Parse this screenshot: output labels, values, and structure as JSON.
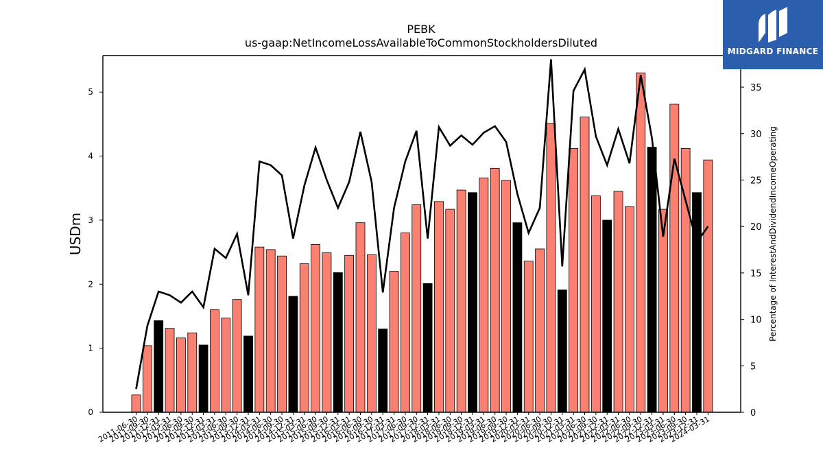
{
  "chart_data": {
    "type": "bar",
    "title": "PEBK",
    "subtitle": "us-gaap:NetIncomeLossAvailableToCommonStockholdersDiluted",
    "ylabel": "USDm",
    "y2label": "Percentage of InterestAndDividendIncomeOperating",
    "ylim": [
      0,
      5.57
    ],
    "y2lim": [
      0,
      38.4
    ],
    "yticks": [
      "0",
      "1",
      "2",
      "3",
      "4",
      "5"
    ],
    "y2ticks": [
      "0",
      "5",
      "10",
      "15",
      "20",
      "25",
      "30",
      "35"
    ],
    "categories": [
      "2011-06-30",
      "2011-09-30",
      "2011-12-31",
      "2012-03-31",
      "2012-06-30",
      "2012-09-30",
      "2012-12-31",
      "2013-03-31",
      "2013-06-30",
      "2013-09-30",
      "2013-12-31",
      "2014-03-31",
      "2014-06-30",
      "2014-09-30",
      "2014-12-31",
      "2015-03-31",
      "2015-06-30",
      "2015-09-30",
      "2015-12-31",
      "2016-03-31",
      "2016-06-30",
      "2016-09-30",
      "2016-12-31",
      "2017-03-31",
      "2017-06-30",
      "2017-09-30",
      "2017-12-31",
      "2018-03-31",
      "2018-06-30",
      "2018-09-30",
      "2018-12-31",
      "2019-03-31",
      "2019-06-30",
      "2019-09-30",
      "2019-12-31",
      "2020-03-31",
      "2020-06-30",
      "2020-09-30",
      "2020-12-31",
      "2021-03-31",
      "2021-06-30",
      "2021-09-30",
      "2021-12-31",
      "2022-03-31",
      "2022-06-30",
      "2022-09-30",
      "2022-12-31",
      "2023-03-31",
      "2023-06-30",
      "2023-09-30",
      "2023-12-31",
      "2024-03-31"
    ],
    "series": [
      {
        "type": "bar",
        "values": [
          0.27,
          1.04,
          1.43,
          1.31,
          1.16,
          1.24,
          1.05,
          1.6,
          1.47,
          1.76,
          1.19,
          2.58,
          2.54,
          2.44,
          1.81,
          2.32,
          2.62,
          2.49,
          2.18,
          2.45,
          2.96,
          2.46,
          1.3,
          2.2,
          2.8,
          3.24,
          2.01,
          3.29,
          3.17,
          3.47,
          3.43,
          3.66,
          3.81,
          3.62,
          2.96,
          2.36,
          2.55,
          4.51,
          1.91,
          4.12,
          4.61,
          3.38,
          3.0,
          3.45,
          3.21,
          5.3,
          4.14,
          3.17,
          4.81,
          4.12,
          3.43,
          3.94
        ],
        "highlight": [
          false,
          false,
          true,
          false,
          false,
          false,
          true,
          false,
          false,
          false,
          true,
          false,
          false,
          false,
          true,
          false,
          false,
          false,
          true,
          false,
          false,
          false,
          true,
          false,
          false,
          false,
          true,
          false,
          false,
          false,
          true,
          false,
          false,
          false,
          true,
          false,
          false,
          false,
          true,
          false,
          false,
          false,
          true,
          false,
          false,
          false,
          true,
          false,
          false,
          false,
          true,
          false
        ],
        "color": "#fa8072",
        "highlight_color": "#000000"
      },
      {
        "type": "line",
        "axis": "right",
        "values": [
          2.5,
          9.3,
          13.0,
          12.6,
          11.8,
          13.0,
          11.3,
          17.6,
          16.6,
          19.2,
          12.6,
          27.0,
          26.6,
          25.5,
          18.7,
          24.4,
          28.5,
          25.0,
          22.0,
          24.8,
          30.2,
          24.8,
          12.9,
          22.0,
          27.0,
          30.3,
          18.7,
          30.7,
          28.7,
          29.8,
          28.8,
          30.1,
          30.8,
          29.1,
          23.5,
          19.3,
          22.0,
          38.0,
          15.7,
          34.6,
          36.9,
          29.7,
          26.6,
          30.5,
          26.8,
          36.3,
          29.5,
          18.9,
          27.3,
          22.8,
          18.3,
          20.0
        ],
        "color": "#000000"
      }
    ]
  },
  "logo": {
    "text": "MIDGARD FINANCE",
    "background": "#2b5fad"
  }
}
